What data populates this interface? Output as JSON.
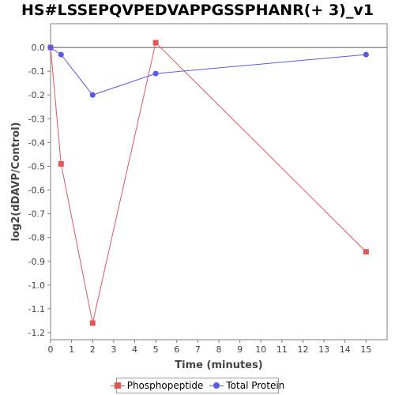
{
  "chart_data": {
    "type": "line",
    "title": "HS#LSSEPQVPEDVAPPGSSPHANR(+ 3)_v1",
    "xlabel": "Time (minutes)",
    "ylabel": "log2(dDAVP/Control)",
    "xlim": [
      0,
      16
    ],
    "ylim": [
      -1.23,
      0.1
    ],
    "xticks": [
      "0",
      "1",
      "2",
      "3",
      "4",
      "5",
      "6",
      "7",
      "8",
      "9",
      "10",
      "11",
      "12",
      "13",
      "14",
      "15"
    ],
    "yticks": [
      "0.0",
      "-0.1",
      "-0.2",
      "-0.3",
      "-0.4",
      "-0.5",
      "-0.6",
      "-0.7",
      "-0.8",
      "-0.9",
      "-1.0",
      "-1.1",
      "-1.2"
    ],
    "grid": false,
    "legend_position": "bottom",
    "series": [
      {
        "name": "Phosphopeptide",
        "color": "#e05757",
        "marker": "square",
        "x": [
          0,
          0.5,
          2,
          5,
          15
        ],
        "y": [
          0.0,
          -0.49,
          -1.16,
          0.02,
          -0.86
        ]
      },
      {
        "name": "Total Protein",
        "color": "#5a5ae8",
        "marker": "circle",
        "x": [
          0,
          0.5,
          2,
          5,
          15
        ],
        "y": [
          0.0,
          -0.03,
          -0.2,
          -0.11,
          -0.03
        ]
      }
    ]
  }
}
